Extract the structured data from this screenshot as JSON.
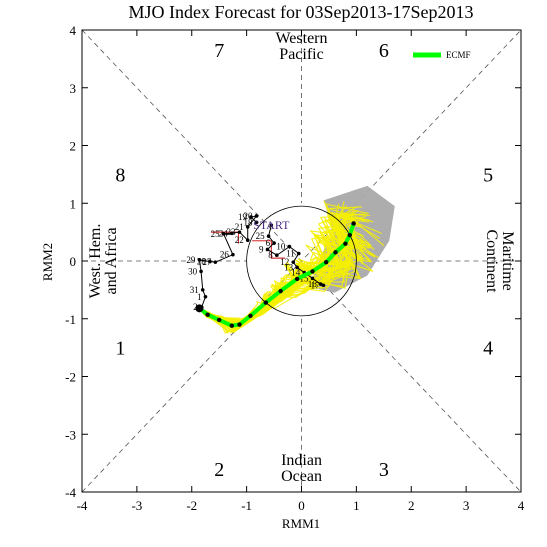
{
  "chart_data": {
    "type": "scatter",
    "title": "MJO Index Forecast for 03Sep2013-17Sep2013",
    "xlabel": "RMM1",
    "ylabel": "RMM2",
    "xlim": [
      -4,
      4
    ],
    "ylim": [
      -4,
      4
    ],
    "xticks": [
      "-4",
      "-3",
      "-2",
      "-1",
      "0",
      "1",
      "2",
      "3",
      "4"
    ],
    "yticks": [
      "-4",
      "-3",
      "-2",
      "-1",
      "0",
      "1",
      "2",
      "3",
      "4"
    ],
    "grid": false,
    "legend": {
      "placement": "top-right",
      "entries": [
        {
          "name": "ECMF",
          "color": "#00ff00"
        }
      ]
    },
    "unit_circle_radius": 1,
    "phases": [
      {
        "label": "1",
        "x": -3.3,
        "y": -1.5
      },
      {
        "label": "2",
        "x": -1.5,
        "y": -3.6
      },
      {
        "label": "3",
        "x": 1.5,
        "y": -3.6
      },
      {
        "label": "4",
        "x": 3.4,
        "y": -1.5
      },
      {
        "label": "5",
        "x": 3.4,
        "y": 1.5
      },
      {
        "label": "6",
        "x": 1.5,
        "y": 3.65
      },
      {
        "label": "7",
        "x": -1.5,
        "y": 3.65
      },
      {
        "label": "8",
        "x": -3.3,
        "y": 1.5
      }
    ],
    "regions": [
      {
        "name": "western-pacific",
        "lines": [
          "Western",
          "Pacific"
        ]
      },
      {
        "name": "indian-ocean",
        "lines": [
          "Indian",
          "Ocean"
        ]
      },
      {
        "name": "west-hem-africa",
        "lines": [
          "West. Hem.",
          "and Africa"
        ]
      },
      {
        "name": "maritime-continent",
        "lines": [
          "Maritime",
          "Continent"
        ]
      }
    ],
    "start_label": {
      "text": "START",
      "x": -0.55,
      "y": 0.62
    },
    "observed": {
      "name": "observed",
      "color": "#000000",
      "points": [
        {
          "label": "18",
          "x": -0.82,
          "y": 0.67
        },
        {
          "label": "19",
          "x": -0.92,
          "y": 0.76
        },
        {
          "label": "20",
          "x": -0.82,
          "y": 0.78
        },
        {
          "label": "21",
          "x": -0.98,
          "y": 0.59
        },
        {
          "label": "22",
          "x": -0.98,
          "y": 0.36
        },
        {
          "label": "23",
          "x": -1.13,
          "y": 0.5
        },
        {
          "label": "24",
          "x": -1.27,
          "y": 0.48
        },
        {
          "label": "25",
          "x": -1.42,
          "y": 0.47
        },
        {
          "label": "26",
          "x": -1.25,
          "y": 0.11
        },
        {
          "label": "27",
          "x": -1.57,
          "y": -0.02
        },
        {
          "label": "28",
          "x": -1.67,
          "y": -0.01
        },
        {
          "label": "29",
          "x": -1.86,
          "y": 0.02
        },
        {
          "label": "30",
          "x": -1.83,
          "y": -0.18
        },
        {
          "label": "31",
          "x": -1.8,
          "y": -0.5
        },
        {
          "label": "1",
          "x": -1.75,
          "y": -0.62
        },
        {
          "label": "2",
          "x": -1.82,
          "y": -0.8
        },
        {
          "label": "",
          "x": -1.82,
          "y": -0.8
        }
      ]
    },
    "observed_2": {
      "name": "observed-second-segment",
      "color": "#000000",
      "points": [
        {
          "label": "",
          "x": -0.55,
          "y": 0.62
        },
        {
          "label": "25",
          "x": -0.6,
          "y": 0.43
        },
        {
          "label": "6",
          "x": -0.5,
          "y": 0.31
        },
        {
          "label": "9",
          "x": -0.62,
          "y": 0.2
        },
        {
          "label": "8",
          "x": -0.45,
          "y": 0.1
        },
        {
          "label": "10",
          "x": -0.22,
          "y": 0.25
        },
        {
          "label": "11",
          "x": -0.05,
          "y": 0.13
        },
        {
          "label": "12",
          "x": -0.15,
          "y": -0.02
        },
        {
          "label": "13",
          "x": -0.08,
          "y": -0.11
        },
        {
          "label": "14",
          "x": 0.05,
          "y": -0.2
        },
        {
          "label": "15",
          "x": 0.2,
          "y": -0.3
        },
        {
          "label": "16",
          "x": 0.35,
          "y": -0.4
        },
        {
          "label": "17",
          "x": 0.4,
          "y": -0.42
        }
      ]
    },
    "forecast_mean": {
      "name": "ECMF",
      "color": "#00ff00",
      "points": [
        {
          "x": -1.86,
          "y": -0.82
        },
        {
          "x": -1.71,
          "y": -0.93
        },
        {
          "x": -1.5,
          "y": -1.02
        },
        {
          "x": -1.27,
          "y": -1.12
        },
        {
          "x": -1.13,
          "y": -1.1
        },
        {
          "x": -0.93,
          "y": -0.95
        },
        {
          "x": -0.65,
          "y": -0.72
        },
        {
          "x": -0.38,
          "y": -0.52
        },
        {
          "x": -0.08,
          "y": -0.31
        },
        {
          "x": 0.2,
          "y": -0.18
        },
        {
          "x": 0.45,
          "y": -0.02
        },
        {
          "x": 0.62,
          "y": 0.15
        },
        {
          "x": 0.8,
          "y": 0.3
        },
        {
          "x": 0.88,
          "y": 0.45
        },
        {
          "x": 0.95,
          "y": 0.65
        }
      ]
    },
    "ensemble_color": "#f5f000",
    "spread_color": "#a9a9a9"
  }
}
